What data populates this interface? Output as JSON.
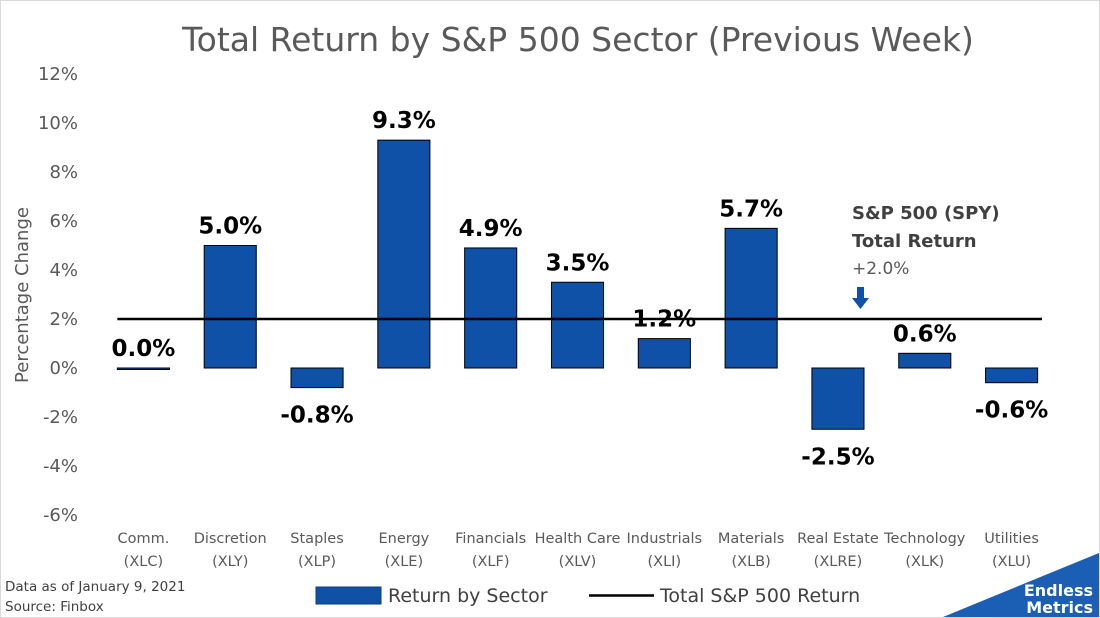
{
  "chart_data": {
    "type": "bar",
    "title": "Total Return by S&P 500 Sector (Previous Week)",
    "ylabel": "Percentage Change",
    "xlabel": "",
    "ylim": [
      -6,
      12
    ],
    "yticks": [
      -6,
      -4,
      -2,
      0,
      2,
      4,
      6,
      8,
      10,
      12
    ],
    "ytick_labels": [
      "-6%",
      "-4%",
      "-2%",
      "0%",
      "2%",
      "4%",
      "6%",
      "8%",
      "10%",
      "12%"
    ],
    "grid": false,
    "legend_position": "bottom",
    "categories": [
      [
        "Comm.",
        "(XLC)"
      ],
      [
        "Discretion",
        "(XLY)"
      ],
      [
        "Staples",
        "(XLP)"
      ],
      [
        "Energy",
        "(XLE)"
      ],
      [
        "Financials",
        "(XLF)"
      ],
      [
        "Health Care",
        "(XLV)"
      ],
      [
        "Industrials",
        "(XLI)"
      ],
      [
        "Materials",
        "(XLB)"
      ],
      [
        "Real Estate",
        "(XLRE)"
      ],
      [
        "Technology",
        "(XLK)"
      ],
      [
        "Utilities",
        "(XLU)"
      ]
    ],
    "series": [
      {
        "name": "Return by Sector",
        "kind": "bar",
        "color": "#0e51a7",
        "values": [
          0.0,
          5.0,
          -0.8,
          9.3,
          4.9,
          3.5,
          1.2,
          5.7,
          -2.5,
          0.6,
          -0.6
        ],
        "labels": [
          "0.0%",
          "5.0%",
          "-0.8%",
          "9.3%",
          "4.9%",
          "3.5%",
          "1.2%",
          "5.7%",
          "-2.5%",
          "0.6%",
          "-0.6%"
        ]
      },
      {
        "name": "Total S&P 500 Return",
        "kind": "line",
        "color": "#000000",
        "value": 2.0
      }
    ],
    "annotation": {
      "line1": "S&P 500 (SPY)",
      "line2": "Total Return",
      "line3": "+2.0%"
    }
  },
  "footer": {
    "date_note": "Data as of January 9, 2021",
    "source": "Source: Finbox"
  },
  "brand": {
    "line1": "Endless",
    "line2": "Metrics",
    "color": "#1a5fb4"
  }
}
